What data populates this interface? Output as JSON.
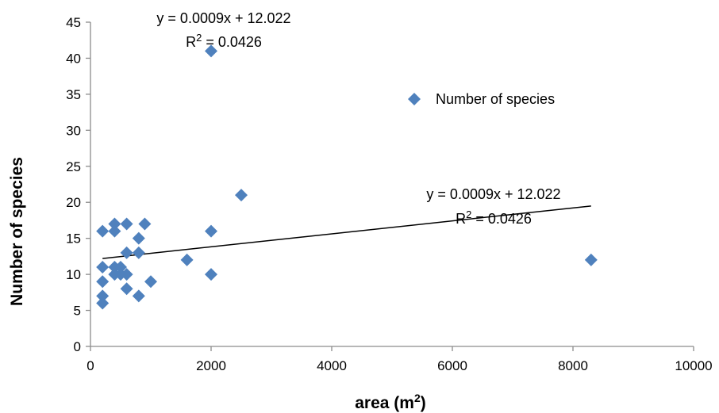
{
  "chart_data": {
    "type": "scatter",
    "xlabel": "area (m",
    "xlabel_sup": "2",
    "xlabel_close": ")",
    "ylabel": "Number of species",
    "xlim": [
      0,
      10000
    ],
    "ylim": [
      0,
      45
    ],
    "x_ticks": [
      0,
      2000,
      4000,
      6000,
      8000,
      10000
    ],
    "y_ticks": [
      0,
      5,
      10,
      15,
      20,
      25,
      30,
      35,
      40,
      45
    ],
    "grid": false,
    "legend": {
      "position": "top-right",
      "label": "Number of species"
    },
    "marker_color": "#4F81BD",
    "series": [
      {
        "name": "Number of species",
        "points": [
          {
            "x": 200,
            "y": 6
          },
          {
            "x": 200,
            "y": 7
          },
          {
            "x": 200,
            "y": 9
          },
          {
            "x": 200,
            "y": 11
          },
          {
            "x": 200,
            "y": 16
          },
          {
            "x": 400,
            "y": 10
          },
          {
            "x": 400,
            "y": 11
          },
          {
            "x": 400,
            "y": 16
          },
          {
            "x": 400,
            "y": 17
          },
          {
            "x": 500,
            "y": 11
          },
          {
            "x": 500,
            "y": 10
          },
          {
            "x": 600,
            "y": 8
          },
          {
            "x": 600,
            "y": 10
          },
          {
            "x": 600,
            "y": 13
          },
          {
            "x": 600,
            "y": 17
          },
          {
            "x": 800,
            "y": 7
          },
          {
            "x": 800,
            "y": 13
          },
          {
            "x": 800,
            "y": 15
          },
          {
            "x": 900,
            "y": 17
          },
          {
            "x": 1000,
            "y": 9
          },
          {
            "x": 1600,
            "y": 12
          },
          {
            "x": 2000,
            "y": 10
          },
          {
            "x": 2000,
            "y": 16
          },
          {
            "x": 2000,
            "y": 41
          },
          {
            "x": 2500,
            "y": 21
          },
          {
            "x": 8300,
            "y": 12
          }
        ]
      }
    ],
    "trendline": {
      "type": "linear",
      "slope": 0.0009,
      "intercept": 12.022,
      "x_range": [
        200,
        8300
      ],
      "color": "#000000"
    },
    "annotations": [
      {
        "id": "eq_top",
        "line1": "y = 0.0009x + 12.022",
        "line2_prefix": "R",
        "line2_sup": "2",
        "line2_suffix": " = 0.0426"
      },
      {
        "id": "eq_trend",
        "line1": "y = 0.0009x + 12.022",
        "line2_prefix": "R",
        "line2_sup": "2",
        "line2_suffix": " = 0.0426"
      }
    ]
  }
}
